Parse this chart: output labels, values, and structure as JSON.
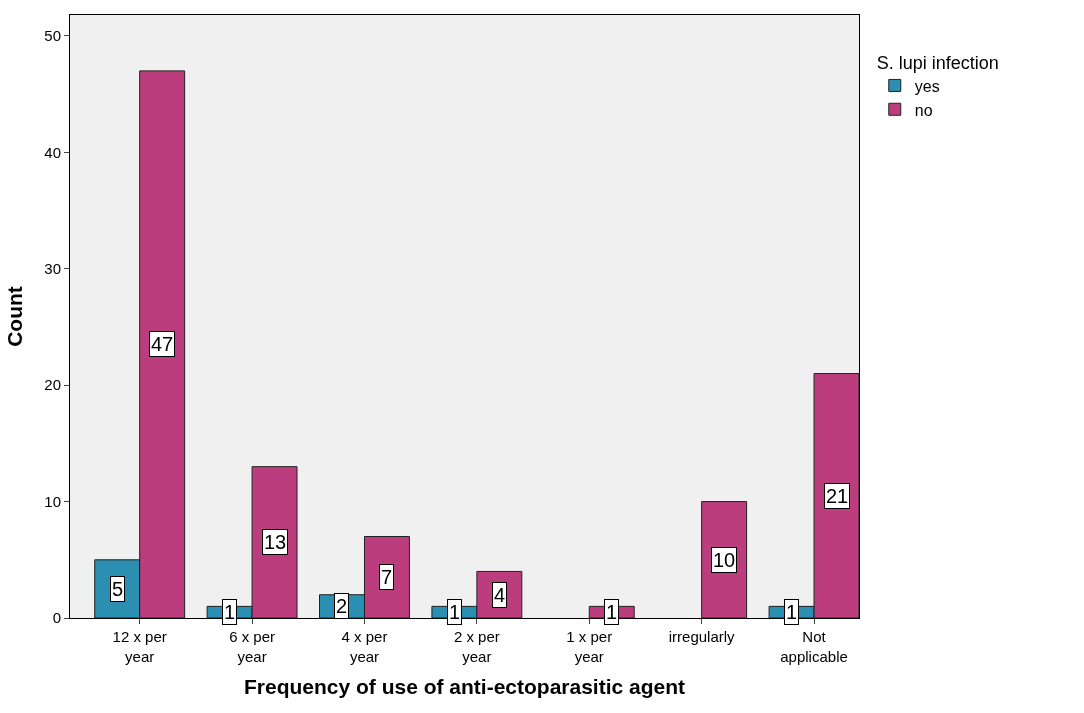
{
  "chart_data": {
    "type": "bar",
    "xlabel": "Frequency of use of anti-ectoparasitic agent",
    "ylabel": "Count",
    "legend_title": "S. lupi infection",
    "categories": [
      "12 x per year",
      "6 x per year",
      "4 x per year",
      "2 x per year",
      "1 x per year",
      "irregularly",
      "Not applicable"
    ],
    "series": [
      {
        "name": "yes",
        "color": "#2a8fb0",
        "values": [
          5,
          1,
          2,
          1,
          null,
          null,
          1
        ]
      },
      {
        "name": "no",
        "color": "#bb3d7e",
        "values": [
          47,
          13,
          7,
          4,
          1,
          10,
          21
        ]
      }
    ],
    "ylim": [
      0,
      51.8
    ],
    "yticks": [
      0,
      10,
      20,
      30,
      40,
      50
    ],
    "grid": false,
    "legend": "top right",
    "data_labels": true
  }
}
